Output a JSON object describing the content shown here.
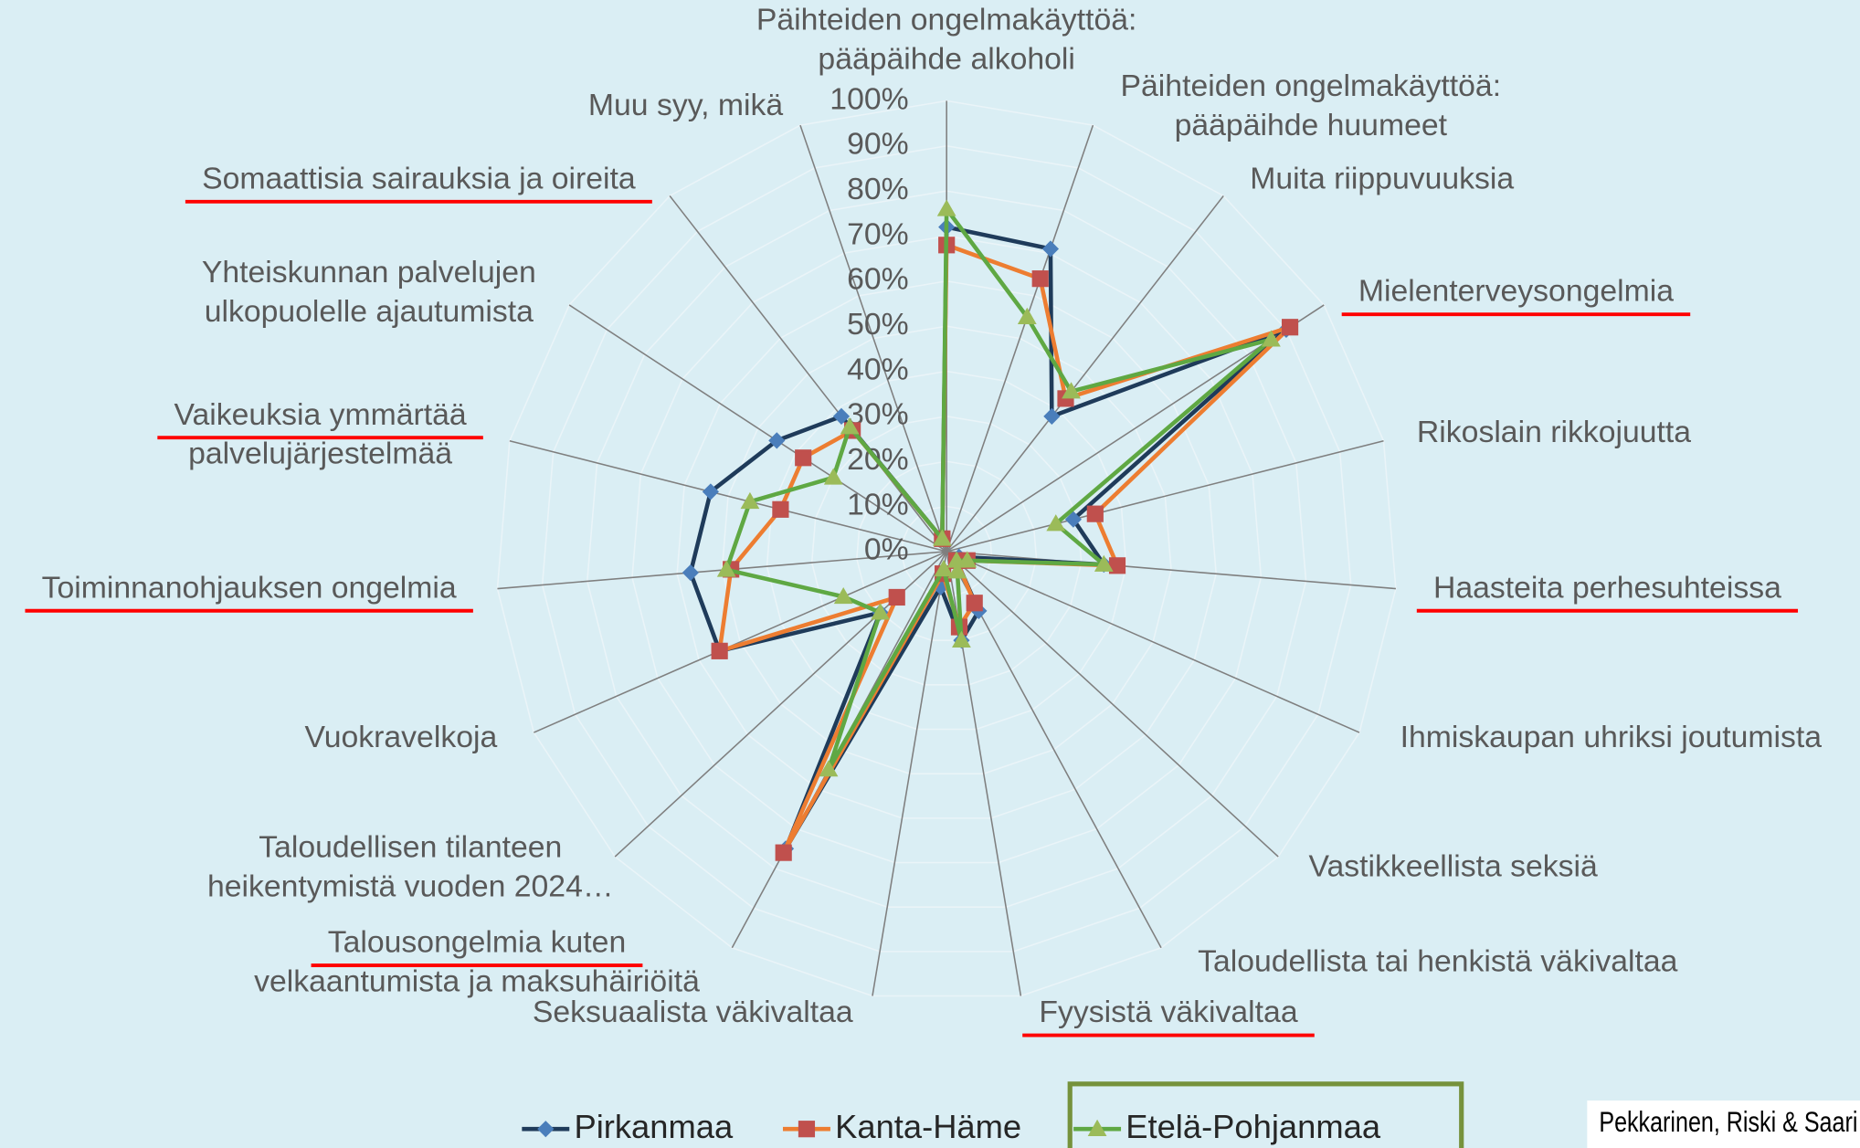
{
  "chart_data": {
    "type": "radar",
    "categories": [
      "Päihteiden ongelmakäyttöä: pääpäihde alkoholi",
      "Päihteiden ongelmakäyttöä: pääpäihde huumeet",
      "Muita riippuvuuksia",
      "Mielenterveysongelmia",
      "Rikoslain rikkojuutta",
      "Haasteita perhesuhteissa",
      "Ihmiskaupan uhriksi joutumista",
      "Vastikkeellista seksiä",
      "Taloudellista tai henkistä väkivaltaa",
      "Fyysistä väkivaltaa",
      "Seksuaalista väkivaltaa",
      "Talousongelmia kuten velkaantumista ja maksuhäiriöitä",
      "Taloudellisen tilanteen heikentymistä vuoden 2024…",
      "Vuokravelkoja",
      "Toiminnanohjauksen ongelmia",
      "Vaikeuksia ymmärtää palvelujärjestelmää",
      "Yhteiskunnan palvelujen ulkopuolelle ajautumista",
      "Somaattisia sairauksia ja oireita",
      "Muu syy, mikä"
    ],
    "series": [
      {
        "name": "Pirkanmaa",
        "color": "#1f3b5a",
        "marker_color": "#4a7ebb",
        "marker": "diamond",
        "values": [
          72,
          71,
          38,
          90,
          29,
          35,
          3,
          3,
          15,
          20,
          8,
          75,
          20,
          55,
          57,
          54,
          45,
          38,
          3
        ]
      },
      {
        "name": "Kanta-Häme",
        "color": "#ed7d31",
        "marker_color": "#c0504d",
        "marker": "square",
        "values": [
          68,
          64,
          43,
          91,
          34,
          38,
          5,
          3,
          13,
          17,
          5,
          76,
          15,
          55,
          48,
          38,
          38,
          34,
          3
        ]
      },
      {
        "name": "Etelä-Pohjanmaa",
        "color": "#5fa843",
        "marker_color": "#9bbb59",
        "marker": "triangle",
        "values": [
          76,
          55,
          45,
          86,
          25,
          35,
          5,
          3,
          5,
          20,
          4,
          55,
          20,
          25,
          49,
          45,
          30,
          35,
          3
        ]
      }
    ],
    "ylim": [
      0,
      100
    ],
    "yticks": [
      {
        "value": 0,
        "label": "0%"
      },
      {
        "value": 10,
        "label": "10%"
      },
      {
        "value": 20,
        "label": "20%"
      },
      {
        "value": 30,
        "label": "30%"
      },
      {
        "value": 40,
        "label": "40%"
      },
      {
        "value": 50,
        "label": "50%"
      },
      {
        "value": 60,
        "label": "60%"
      },
      {
        "value": 70,
        "label": "70%"
      },
      {
        "value": 80,
        "label": "80%"
      },
      {
        "value": 90,
        "label": "90%"
      },
      {
        "value": 100,
        "label": "100%"
      }
    ],
    "grid": true,
    "legend": "bottom",
    "source": "Pekkarinen, Riski & Saari"
  }
}
